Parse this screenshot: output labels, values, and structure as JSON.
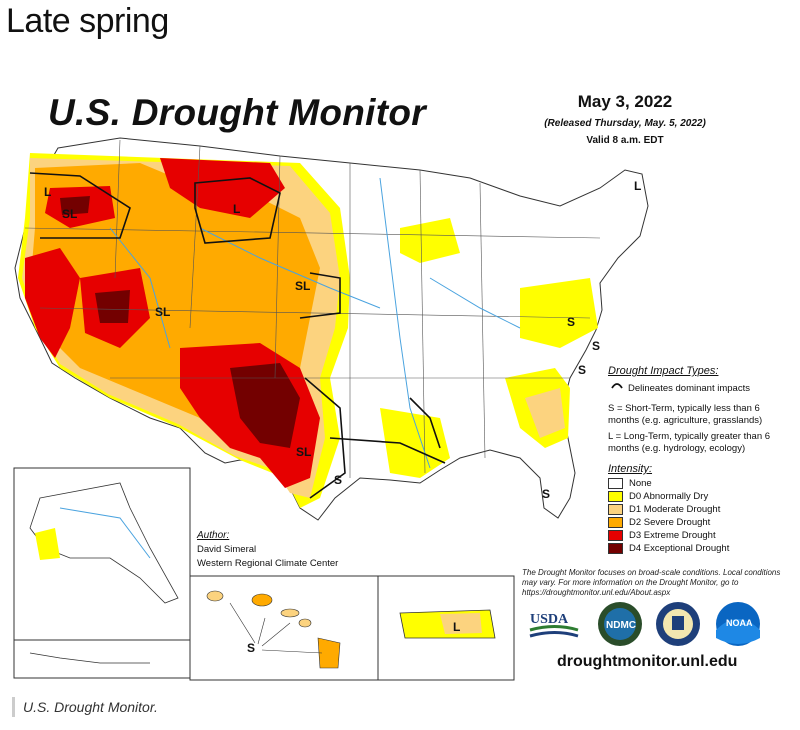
{
  "page": {
    "headline": "Late spring",
    "caption": "U.S. Drought Monitor."
  },
  "map": {
    "title": "U.S. Drought Monitor",
    "date": "May 3, 2022",
    "released": "(Released Thursday, May. 5, 2022)",
    "valid": "Valid 8 a.m. EDT",
    "impact_types": {
      "title": "Drought Impact Types:",
      "delineates": "Delineates dominant impacts",
      "short_term": "S = Short-Term, typically less than 6 months (e.g. agriculture, grasslands)",
      "long_term": "L = Long-Term, typically greater than 6 months (e.g. hydrology, ecology)"
    },
    "legend": {
      "title": "Intensity:",
      "items": [
        {
          "label": "None",
          "color": "#ffffff"
        },
        {
          "label": "D0 Abnormally Dry",
          "color": "#ffff00"
        },
        {
          "label": "D1 Moderate Drought",
          "color": "#fcd37f"
        },
        {
          "label": "D2 Severe Drought",
          "color": "#ffaa00"
        },
        {
          "label": "D3 Extreme Drought",
          "color": "#e60000"
        },
        {
          "label": "D4 Exceptional Drought",
          "color": "#730000"
        }
      ]
    },
    "author": {
      "label": "Author:",
      "name": "David Simeral",
      "org": "Western Regional Climate Center"
    },
    "note": "The Drought Monitor focuses on broad-scale conditions. Local conditions may vary. For more information on the Drought Monitor, go to https://droughtmonitor.unl.edu/About.aspx",
    "logos": {
      "usda": "USDA",
      "ndmc": "NDMC",
      "noaa": "NOAA"
    },
    "website": "droughtmonitor.unl.edu",
    "impact_labels": {
      "sl": "SL",
      "l": "L",
      "s": "S"
    }
  }
}
